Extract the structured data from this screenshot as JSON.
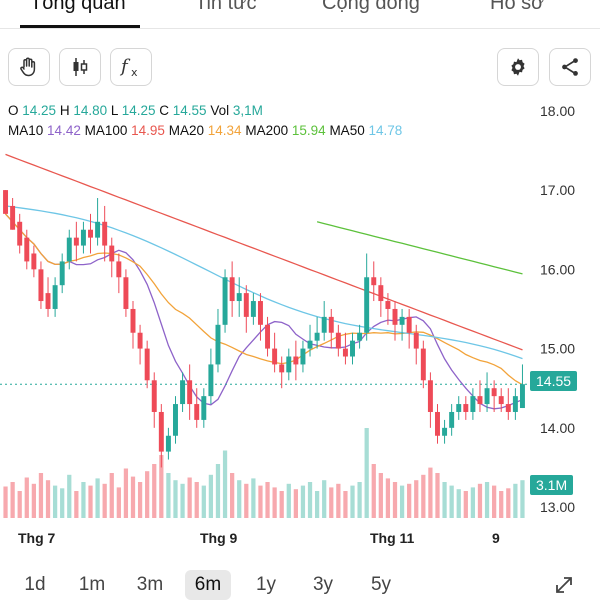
{
  "tabs": [
    {
      "label": "Tổng quan",
      "active": true
    },
    {
      "label": "Tin tức",
      "active": false
    },
    {
      "label": "Cộng đồng",
      "active": false
    },
    {
      "label": "Hồ sơ",
      "active": false
    }
  ],
  "toolbar": {
    "left_icons": [
      "hand-drag-icon",
      "candlestick-icon",
      "function-fx-icon"
    ],
    "right_icons": [
      "settings-gear-icon",
      "share-icon"
    ]
  },
  "ohlc": {
    "o_label": "O",
    "o_value": "14.25",
    "h_label": "H",
    "h_value": "14.80",
    "l_label": "L",
    "l_value": "14.25",
    "c_label": "C",
    "c_value": "14.55",
    "vol_label": "Vol",
    "vol_value": "3,1M"
  },
  "ma": [
    {
      "label": "MA10",
      "value": "14.42",
      "color": "#8e63c9"
    },
    {
      "label": "MA100",
      "value": "14.95",
      "color": "#e8574f"
    },
    {
      "label": "MA20",
      "value": "14.34",
      "color": "#f2a33a"
    },
    {
      "label": "MA200",
      "value": "15.94",
      "color": "#5cc13b"
    },
    {
      "label": "MA50",
      "value": "14.78",
      "color": "#6ec6e6"
    }
  ],
  "colors": {
    "up": "#26a89a",
    "down": "#ee4a57",
    "up_vol": "#a7ddd5",
    "down_vol": "#f7a9ae"
  },
  "y_axis": {
    "ticks": [
      "18.00",
      "17.00",
      "16.00",
      "15.00",
      "14.00",
      "13.00"
    ],
    "min": 12.9,
    "max": 18.2
  },
  "x_axis": {
    "labels": [
      "Thg 7",
      "Thg 9",
      "Thg 11",
      "9"
    ]
  },
  "price_tag": "14.55",
  "volume_tag": "3.1M",
  "ranges": [
    {
      "label": "1d",
      "active": false
    },
    {
      "label": "1m",
      "active": false
    },
    {
      "label": "3m",
      "active": false
    },
    {
      "label": "6m",
      "active": true
    },
    {
      "label": "1y",
      "active": false
    },
    {
      "label": "3y",
      "active": false
    },
    {
      "label": "5y",
      "active": false
    }
  ],
  "expand_icon": "expand-diagonal-icon",
  "chart_data": {
    "type": "candlestick",
    "ylim": [
      12.9,
      18.2
    ],
    "close_line": 14.55,
    "candles": [
      [
        17.0,
        16.7,
        17.0,
        16.7
      ],
      [
        16.8,
        16.5,
        16.9,
        16.5
      ],
      [
        16.6,
        16.3,
        16.7,
        16.2
      ],
      [
        16.4,
        16.1,
        16.5,
        16.0
      ],
      [
        16.2,
        16.0,
        16.3,
        15.9
      ],
      [
        16.0,
        15.6,
        16.1,
        15.5
      ],
      [
        15.7,
        15.5,
        15.9,
        15.4
      ],
      [
        15.5,
        15.8,
        15.9,
        15.4
      ],
      [
        15.8,
        16.1,
        16.2,
        15.7
      ],
      [
        16.1,
        16.4,
        16.5,
        16.0
      ],
      [
        16.4,
        16.3,
        16.6,
        16.1
      ],
      [
        16.3,
        16.5,
        16.6,
        16.2
      ],
      [
        16.5,
        16.4,
        16.7,
        16.2
      ],
      [
        16.4,
        16.6,
        16.9,
        16.3
      ],
      [
        16.6,
        16.3,
        16.8,
        16.1
      ],
      [
        16.3,
        16.1,
        16.4,
        15.9
      ],
      [
        16.1,
        15.9,
        16.2,
        15.7
      ],
      [
        15.9,
        15.5,
        16.0,
        15.4
      ],
      [
        15.5,
        15.2,
        15.6,
        15.0
      ],
      [
        15.2,
        15.0,
        15.3,
        14.8
      ],
      [
        15.0,
        14.6,
        15.1,
        14.5
      ],
      [
        14.6,
        14.2,
        14.7,
        14.0
      ],
      [
        14.2,
        13.7,
        14.3,
        13.5
      ],
      [
        13.7,
        13.9,
        14.0,
        13.6
      ],
      [
        13.9,
        14.3,
        14.4,
        13.8
      ],
      [
        14.3,
        14.6,
        14.7,
        14.2
      ],
      [
        14.6,
        14.3,
        14.8,
        14.1
      ],
      [
        14.3,
        14.1,
        14.5,
        14.0
      ],
      [
        14.1,
        14.4,
        14.5,
        14.0
      ],
      [
        14.4,
        14.8,
        15.0,
        14.3
      ],
      [
        14.8,
        15.3,
        15.5,
        14.7
      ],
      [
        15.3,
        15.9,
        16.0,
        15.2
      ],
      [
        15.9,
        15.6,
        16.1,
        15.4
      ],
      [
        15.6,
        15.7,
        15.9,
        15.4
      ],
      [
        15.7,
        15.4,
        15.8,
        15.2
      ],
      [
        15.4,
        15.6,
        15.7,
        15.3
      ],
      [
        15.6,
        15.3,
        15.7,
        15.1
      ],
      [
        15.3,
        15.0,
        15.4,
        14.9
      ],
      [
        15.0,
        14.8,
        15.2,
        14.7
      ],
      [
        14.8,
        14.7,
        14.9,
        14.5
      ],
      [
        14.7,
        14.9,
        15.0,
        14.6
      ],
      [
        14.9,
        14.8,
        15.1,
        14.6
      ],
      [
        14.8,
        15.0,
        15.1,
        14.7
      ],
      [
        15.0,
        15.1,
        15.3,
        14.9
      ],
      [
        15.1,
        15.2,
        15.4,
        15.0
      ],
      [
        15.2,
        15.4,
        15.6,
        15.1
      ],
      [
        15.4,
        15.2,
        15.5,
        15.0
      ],
      [
        15.2,
        15.0,
        15.3,
        14.9
      ],
      [
        15.0,
        14.9,
        15.2,
        14.8
      ],
      [
        14.9,
        15.1,
        15.2,
        14.8
      ],
      [
        15.1,
        15.2,
        15.3,
        15.0
      ],
      [
        15.2,
        15.9,
        16.2,
        15.1
      ],
      [
        15.9,
        15.8,
        16.1,
        15.6
      ],
      [
        15.8,
        15.6,
        15.9,
        15.4
      ],
      [
        15.6,
        15.5,
        15.7,
        15.3
      ],
      [
        15.5,
        15.3,
        15.6,
        15.1
      ],
      [
        15.3,
        15.4,
        15.5,
        15.1
      ],
      [
        15.4,
        15.2,
        15.5,
        15.0
      ],
      [
        15.2,
        15.0,
        15.3,
        14.8
      ],
      [
        15.0,
        14.6,
        15.1,
        14.5
      ],
      [
        14.6,
        14.2,
        14.7,
        14.0
      ],
      [
        14.2,
        13.9,
        14.3,
        13.8
      ],
      [
        13.9,
        14.0,
        14.1,
        13.8
      ],
      [
        14.0,
        14.2,
        14.3,
        13.9
      ],
      [
        14.2,
        14.3,
        14.4,
        14.1
      ],
      [
        14.3,
        14.2,
        14.4,
        14.1
      ],
      [
        14.2,
        14.4,
        14.5,
        14.1
      ],
      [
        14.4,
        14.3,
        14.6,
        14.2
      ],
      [
        14.3,
        14.5,
        14.7,
        14.2
      ],
      [
        14.5,
        14.4,
        14.6,
        14.2
      ],
      [
        14.4,
        14.3,
        14.5,
        14.2
      ],
      [
        14.3,
        14.2,
        14.5,
        14.1
      ],
      [
        14.2,
        14.4,
        14.5,
        14.1
      ],
      [
        14.25,
        14.55,
        14.8,
        14.25
      ]
    ],
    "volumes": [
      0.35,
      0.4,
      0.3,
      0.45,
      0.38,
      0.5,
      0.42,
      0.36,
      0.33,
      0.48,
      0.3,
      0.4,
      0.36,
      0.44,
      0.38,
      0.5,
      0.34,
      0.55,
      0.46,
      0.4,
      0.52,
      0.6,
      0.7,
      0.5,
      0.42,
      0.38,
      0.45,
      0.4,
      0.36,
      0.48,
      0.6,
      0.75,
      0.5,
      0.42,
      0.38,
      0.44,
      0.36,
      0.4,
      0.34,
      0.3,
      0.38,
      0.32,
      0.36,
      0.4,
      0.3,
      0.42,
      0.34,
      0.38,
      0.3,
      0.36,
      0.4,
      1.0,
      0.6,
      0.5,
      0.44,
      0.4,
      0.36,
      0.38,
      0.42,
      0.48,
      0.56,
      0.5,
      0.4,
      0.36,
      0.32,
      0.3,
      0.34,
      0.38,
      0.4,
      0.36,
      0.3,
      0.33,
      0.38,
      0.42
    ]
  }
}
